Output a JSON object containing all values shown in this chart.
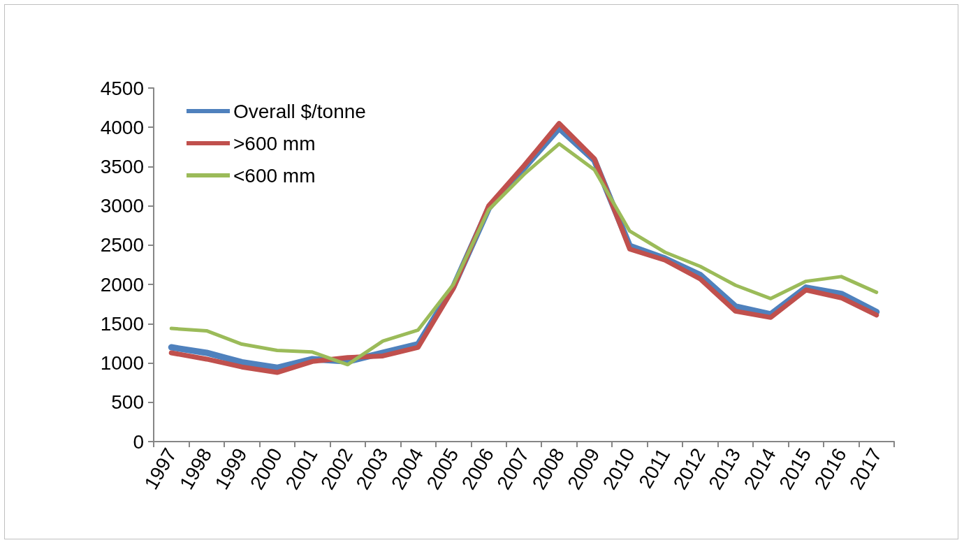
{
  "chart_data": {
    "type": "line",
    "categories": [
      "1997",
      "1998",
      "1999",
      "2000",
      "2001",
      "2002",
      "2003",
      "2004",
      "2005",
      "2006",
      "2007",
      "2008",
      "2009",
      "2010",
      "2011",
      "2012",
      "2013",
      "2014",
      "2015",
      "2016",
      "2017"
    ],
    "series": [
      {
        "name": "Overall $/tonne",
        "color": "#4f81bd",
        "values": [
          1200,
          1130,
          1010,
          940,
          1050,
          1020,
          1130,
          1240,
          1970,
          2970,
          3480,
          3990,
          3580,
          2490,
          2330,
          2120,
          1720,
          1620,
          1960,
          1880,
          1650
        ]
      },
      {
        "name": ">600 mm",
        "color": "#c0504d",
        "values": [
          1130,
          1050,
          950,
          880,
          1020,
          1070,
          1090,
          1200,
          1950,
          3000,
          3510,
          4050,
          3600,
          2450,
          2310,
          2070,
          1660,
          1580,
          1930,
          1830,
          1610
        ]
      },
      {
        "name": "<600 mm",
        "color": "#9bbb59",
        "values": [
          1440,
          1410,
          1240,
          1160,
          1140,
          980,
          1280,
          1420,
          2000,
          2950,
          3400,
          3790,
          3460,
          2680,
          2410,
          2230,
          1990,
          1820,
          2040,
          2100,
          1900
        ]
      }
    ],
    "ylim": [
      0,
      4500
    ],
    "yticks": [
      0,
      500,
      1000,
      1500,
      2000,
      2500,
      3000,
      3500,
      4000,
      4500
    ],
    "grid": false,
    "legend": "top left",
    "marker": "none",
    "line_style": "solid"
  }
}
